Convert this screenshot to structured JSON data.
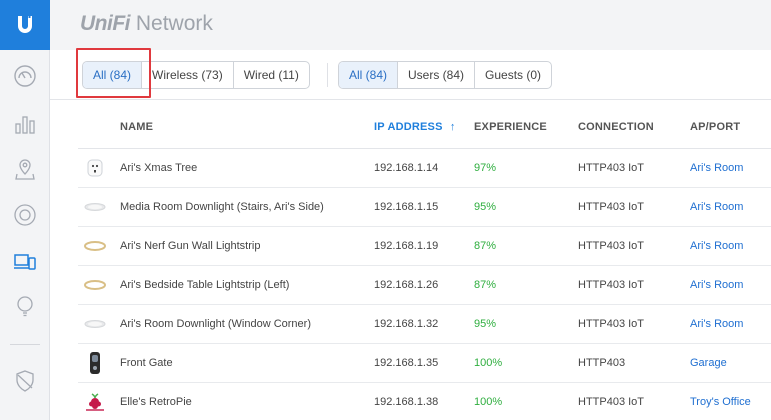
{
  "app": {
    "brand_main": "UniFi",
    "brand_sub": "Network"
  },
  "sidebar": {
    "items": [
      {
        "icon": "dashboard-icon"
      },
      {
        "icon": "statistics-icon"
      },
      {
        "icon": "map-icon"
      },
      {
        "icon": "devices-icon"
      },
      {
        "icon": "clients-icon",
        "active": true
      },
      {
        "icon": "insights-icon"
      },
      {
        "icon": "shield-icon"
      }
    ]
  },
  "filters": {
    "type_group": [
      {
        "label": "All (84)",
        "active": true
      },
      {
        "label": "Wireless (73)",
        "active": false
      },
      {
        "label": "Wired (11)",
        "active": false
      }
    ],
    "user_group": [
      {
        "label": "All (84)",
        "active": true
      },
      {
        "label": "Users (84)",
        "active": false
      },
      {
        "label": "Guests (0)",
        "active": false
      }
    ]
  },
  "table": {
    "columns": {
      "name": "NAME",
      "ip": "IP ADDRESS",
      "sort_indicator": "↑",
      "experience": "EXPERIENCE",
      "connection": "CONNECTION",
      "ap_port": "AP/PORT"
    },
    "rows": [
      {
        "icon": "smart-plug-icon",
        "name": "Ari's Xmas Tree",
        "ip": "192.168.1.14",
        "experience": "97%",
        "connection": "HTTP403 IoT",
        "ap": "Ari's Room"
      },
      {
        "icon": "downlight-icon",
        "name": "Media Room Downlight (Stairs, Ari's Side)",
        "ip": "192.168.1.15",
        "experience": "95%",
        "connection": "HTTP403 IoT",
        "ap": "Ari's Room"
      },
      {
        "icon": "lightstrip-icon",
        "name": "Ari's Nerf Gun Wall Lightstrip",
        "ip": "192.168.1.19",
        "experience": "87%",
        "connection": "HTTP403 IoT",
        "ap": "Ari's Room"
      },
      {
        "icon": "lightstrip-icon",
        "name": "Ari's Bedside Table Lightstrip (Left)",
        "ip": "192.168.1.26",
        "experience": "87%",
        "connection": "HTTP403 IoT",
        "ap": "Ari's Room"
      },
      {
        "icon": "downlight-icon",
        "name": "Ari's Room Downlight (Window Corner)",
        "ip": "192.168.1.32",
        "experience": "95%",
        "connection": "HTTP403 IoT",
        "ap": "Ari's Room"
      },
      {
        "icon": "doorbell-icon",
        "name": "Front Gate",
        "ip": "192.168.1.35",
        "experience": "100%",
        "connection": "HTTP403",
        "ap": "Garage"
      },
      {
        "icon": "raspberry-pi-icon",
        "name": "Elle's RetroPie",
        "ip": "192.168.1.38",
        "experience": "100%",
        "connection": "HTTP403 IoT",
        "ap": "Troy's Office"
      }
    ]
  },
  "colors": {
    "accent": "#1f7fdc",
    "good": "#2fae3f",
    "highlight": "#e0393e"
  }
}
